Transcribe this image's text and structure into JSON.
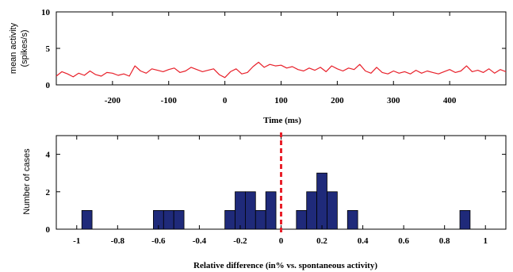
{
  "chart_data": [
    {
      "type": "line",
      "title": "",
      "xlabel": "Time (ms)",
      "ylabel_lines": [
        "mean activity",
        "(spikes/s)"
      ],
      "xlim": [
        -300,
        500
      ],
      "ylim": [
        0,
        10
      ],
      "xticks": [
        -200,
        -100,
        0,
        100,
        200,
        300,
        400
      ],
      "xtick_labels": [
        "-200",
        "-100",
        "0",
        "100",
        "200",
        "300",
        "400"
      ],
      "yticks": [
        0,
        5,
        10
      ],
      "ytick_labels": [
        "0",
        "5",
        "10"
      ],
      "grid": false,
      "series": [
        {
          "color": "#e8202a",
          "x": [
            -300,
            -290,
            -280,
            -270,
            -260,
            -250,
            -240,
            -230,
            -220,
            -210,
            -200,
            -190,
            -180,
            -170,
            -160,
            -150,
            -140,
            -130,
            -120,
            -110,
            -100,
            -90,
            -80,
            -70,
            -60,
            -50,
            -40,
            -30,
            -20,
            -10,
            0,
            10,
            20,
            30,
            40,
            50,
            60,
            70,
            80,
            90,
            100,
            110,
            120,
            130,
            140,
            150,
            160,
            170,
            180,
            190,
            200,
            210,
            220,
            230,
            240,
            250,
            260,
            270,
            280,
            290,
            300,
            310,
            320,
            330,
            340,
            350,
            360,
            370,
            380,
            390,
            400,
            410,
            420,
            430,
            440,
            450,
            460,
            470,
            480,
            490,
            500
          ],
          "y": [
            1.2,
            1.8,
            1.5,
            1.1,
            1.6,
            1.3,
            1.9,
            1.4,
            1.2,
            1.7,
            1.6,
            1.3,
            1.5,
            1.2,
            2.6,
            1.9,
            1.6,
            2.2,
            2.0,
            1.8,
            2.1,
            2.3,
            1.7,
            1.9,
            2.4,
            2.1,
            1.8,
            2.0,
            2.2,
            1.4,
            1.0,
            1.8,
            2.2,
            1.5,
            1.7,
            2.5,
            3.1,
            2.4,
            2.8,
            2.6,
            2.7,
            2.3,
            2.5,
            2.1,
            1.9,
            2.3,
            2.0,
            2.4,
            1.8,
            2.6,
            2.2,
            1.9,
            2.3,
            2.1,
            2.8,
            1.9,
            1.6,
            2.4,
            1.7,
            1.5,
            1.9,
            1.6,
            1.8,
            1.5,
            2.0,
            1.6,
            1.9,
            1.7,
            1.5,
            1.8,
            2.1,
            1.7,
            1.9,
            2.6,
            1.8,
            2.0,
            1.7,
            2.2,
            1.6,
            2.1,
            1.8
          ]
        }
      ]
    },
    {
      "type": "bar",
      "title": "",
      "xlabel": "Relative difference (in% vs. spontaneous activity)",
      "ylabel": "Number of cases",
      "xlim": [
        -1.1,
        1.1
      ],
      "ylim": [
        0,
        5
      ],
      "xticks": [
        -1,
        -0.8,
        -0.6,
        -0.4,
        -0.2,
        0,
        0.2,
        0.4,
        0.6,
        0.8,
        1
      ],
      "xtick_labels": [
        "-1",
        "-0.8",
        "-0.6",
        "-0.4",
        "-0.2",
        "0",
        "0.2",
        "0.4",
        "0.6",
        "0.8",
        "1"
      ],
      "yticks": [
        0,
        2,
        4
      ],
      "ytick_labels": [
        "0",
        "2",
        "4"
      ],
      "bin_width": 0.05,
      "bar_color": "#1f2a7a",
      "bins": [
        {
          "x": -0.95,
          "count": 1
        },
        {
          "x": -0.6,
          "count": 1
        },
        {
          "x": -0.55,
          "count": 1
        },
        {
          "x": -0.5,
          "count": 1
        },
        {
          "x": -0.25,
          "count": 1
        },
        {
          "x": -0.2,
          "count": 2
        },
        {
          "x": -0.15,
          "count": 2
        },
        {
          "x": -0.1,
          "count": 1
        },
        {
          "x": -0.05,
          "count": 2
        },
        {
          "x": 0.1,
          "count": 1
        },
        {
          "x": 0.15,
          "count": 2
        },
        {
          "x": 0.2,
          "count": 3
        },
        {
          "x": 0.25,
          "count": 2
        },
        {
          "x": 0.35,
          "count": 1
        },
        {
          "x": 0.9,
          "count": 1
        }
      ],
      "reference_line": {
        "x": 0,
        "color": "#e8202a",
        "style": "dashed"
      }
    }
  ]
}
